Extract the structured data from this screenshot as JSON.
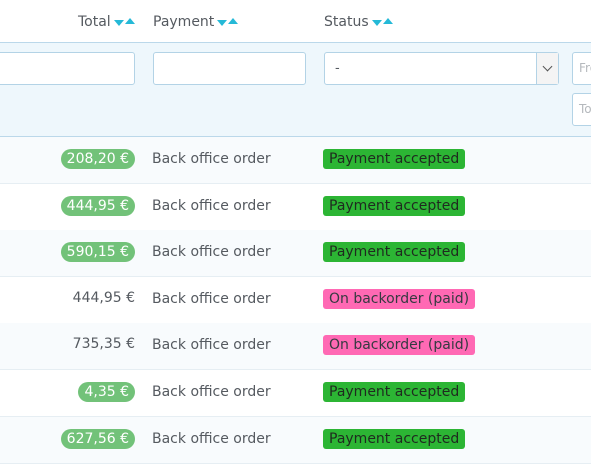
{
  "header": {
    "total": "Total",
    "payment": "Payment",
    "status": "Status"
  },
  "filters": {
    "status_value": "-",
    "date_from_placeholder": "From",
    "date_to_placeholder": "To"
  },
  "colors": {
    "accepted": "#2cb534",
    "backorder": "#ff69b4",
    "total_badge": "#72c279",
    "sort_arrow": "#25b9d7"
  },
  "rows": [
    {
      "total": "208,20 €",
      "badge": true,
      "payment": "Back office order",
      "status": "Payment accepted"
    },
    {
      "total": "444,95 €",
      "badge": true,
      "payment": "Back office order",
      "status": "Payment accepted"
    },
    {
      "total": "590,15 €",
      "badge": true,
      "payment": "Back office order",
      "status": "Payment accepted"
    },
    {
      "total": "444,95 €",
      "badge": false,
      "payment": "Back office order",
      "status": "On backorder (paid)"
    },
    {
      "total": "735,35 €",
      "badge": false,
      "payment": "Back office order",
      "status": "On backorder (paid)"
    },
    {
      "total": "4,35 €",
      "badge": true,
      "payment": "Back office order",
      "status": "Payment accepted"
    },
    {
      "total": "627,56 €",
      "badge": true,
      "payment": "Back office order",
      "status": "Payment accepted"
    }
  ]
}
